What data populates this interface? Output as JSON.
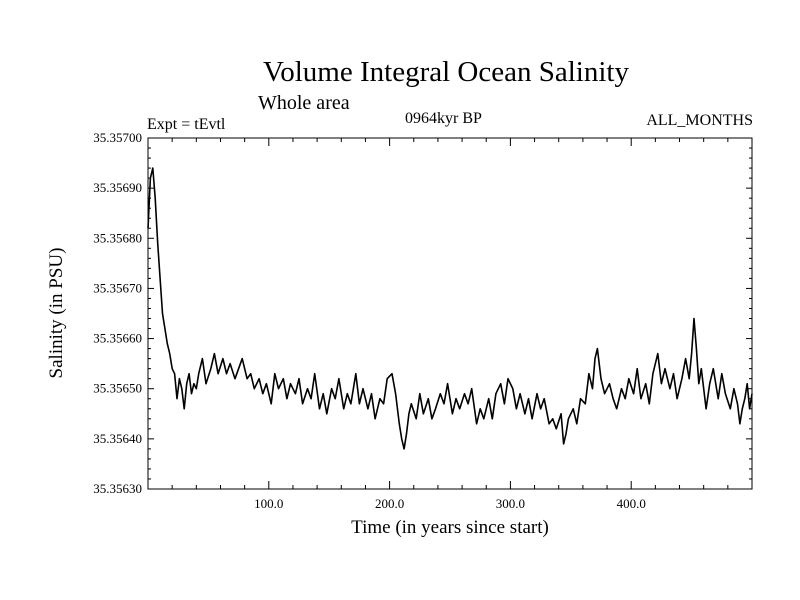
{
  "header": {
    "title": "Volume Integral Ocean Salinity",
    "subtitle": "Whole area",
    "experiment": "Expt = tEvtl",
    "period": "0964kyr BP",
    "months": "ALL_MONTHS"
  },
  "chart_data": {
    "type": "line",
    "title": "Volume Integral Ocean Salinity",
    "xlabel": "Time (in years since start)",
    "ylabel": "Salinity (in PSU)",
    "xlim": [
      0,
      500
    ],
    "ylim": [
      35.3563,
      35.357
    ],
    "x_ticks": [
      100,
      200,
      300,
      400
    ],
    "x_tick_labels": [
      "100.0",
      "200.0",
      "300.0",
      "400.0"
    ],
    "y_ticks": [
      35.3563,
      35.3564,
      35.3565,
      35.3566,
      35.3567,
      35.3568,
      35.3569,
      35.357
    ],
    "y_tick_labels": [
      "35.35630",
      "35.35640",
      "35.35650",
      "35.35660",
      "35.35670",
      "35.35680",
      "35.35690",
      "35.35700"
    ],
    "grid": false,
    "series": [
      {
        "name": "salinity",
        "color": "#000000",
        "x": [
          0,
          2,
          4,
          6,
          8,
          10,
          12,
          14,
          16,
          18,
          20,
          22,
          24,
          26,
          28,
          30,
          32,
          34,
          36,
          38,
          40,
          42,
          45,
          48,
          52,
          55,
          58,
          62,
          65,
          68,
          72,
          75,
          78,
          82,
          85,
          88,
          92,
          95,
          98,
          102,
          105,
          108,
          112,
          115,
          118,
          122,
          125,
          128,
          132,
          135,
          138,
          142,
          145,
          148,
          152,
          155,
          158,
          162,
          165,
          168,
          172,
          175,
          178,
          182,
          185,
          188,
          192,
          195,
          198,
          202,
          205,
          208,
          210,
          212,
          214,
          216,
          218,
          222,
          225,
          228,
          232,
          235,
          238,
          242,
          245,
          248,
          252,
          255,
          258,
          262,
          265,
          268,
          272,
          275,
          278,
          282,
          285,
          288,
          292,
          295,
          298,
          302,
          305,
          308,
          312,
          315,
          318,
          322,
          325,
          328,
          332,
          335,
          338,
          342,
          344,
          346,
          348,
          352,
          355,
          358,
          362,
          365,
          368,
          370,
          372,
          375,
          378,
          382,
          385,
          388,
          392,
          395,
          398,
          402,
          405,
          408,
          412,
          415,
          418,
          422,
          425,
          428,
          432,
          435,
          438,
          442,
          445,
          448,
          450,
          452,
          454,
          456,
          458,
          462,
          465,
          468,
          472,
          475,
          478,
          482,
          485,
          488,
          490,
          492,
          494,
          496,
          498,
          500
        ],
        "y": [
          35.35682,
          35.35692,
          35.35694,
          35.35688,
          35.35679,
          35.35672,
          35.35665,
          35.35662,
          35.35659,
          35.35657,
          35.35654,
          35.35653,
          35.35648,
          35.35652,
          35.3565,
          35.35646,
          35.35651,
          35.35653,
          35.35649,
          35.35651,
          35.3565,
          35.35653,
          35.35656,
          35.35651,
          35.35654,
          35.35657,
          35.35653,
          35.35656,
          35.35653,
          35.35655,
          35.35652,
          35.35654,
          35.35656,
          35.35652,
          35.35653,
          35.3565,
          35.35652,
          35.35649,
          35.35651,
          35.35647,
          35.35653,
          35.3565,
          35.35652,
          35.35648,
          35.35651,
          35.35649,
          35.35652,
          35.35647,
          35.3565,
          35.35648,
          35.35653,
          35.35646,
          35.35649,
          35.35645,
          35.3565,
          35.35648,
          35.35652,
          35.35646,
          35.35649,
          35.35647,
          35.35653,
          35.35647,
          35.3565,
          35.35646,
          35.35649,
          35.35644,
          35.35648,
          35.35647,
          35.35652,
          35.35653,
          35.35649,
          35.35643,
          35.3564,
          35.35638,
          35.35641,
          35.35645,
          35.35647,
          35.35644,
          35.35649,
          35.35645,
          35.35648,
          35.35644,
          35.35646,
          35.35649,
          35.35647,
          35.35651,
          35.35645,
          35.35648,
          35.35646,
          35.35649,
          35.35647,
          35.3565,
          35.35643,
          35.35646,
          35.35644,
          35.35648,
          35.35644,
          35.35649,
          35.35651,
          35.35647,
          35.35652,
          35.3565,
          35.35646,
          35.35649,
          35.35645,
          35.35648,
          35.35644,
          35.35649,
          35.35646,
          35.35648,
          35.35643,
          35.35644,
          35.35642,
          35.35645,
          35.35639,
          35.35641,
          35.35644,
          35.35646,
          35.35643,
          35.35648,
          35.35647,
          35.35653,
          35.3565,
          35.35656,
          35.35658,
          35.35652,
          35.35649,
          35.35651,
          35.35648,
          35.35646,
          35.3565,
          35.35648,
          35.35652,
          35.35649,
          35.35654,
          35.35648,
          35.35651,
          35.35647,
          35.35653,
          35.35657,
          35.35651,
          35.35654,
          35.3565,
          35.35653,
          35.35648,
          35.35652,
          35.35656,
          35.35652,
          35.35657,
          35.35664,
          35.35658,
          35.35651,
          35.35654,
          35.35646,
          35.35651,
          35.35654,
          35.35648,
          35.35653,
          35.35649,
          35.35646,
          35.3565,
          35.35647,
          35.35643,
          35.35646,
          35.35648,
          35.35651,
          35.35646,
          35.35649
        ]
      }
    ]
  }
}
